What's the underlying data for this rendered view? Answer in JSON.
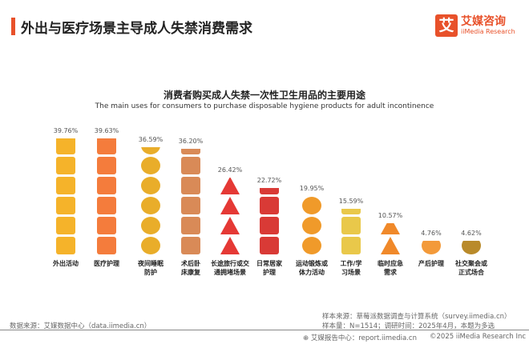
{
  "header": {
    "title": "外出与医疗场景主导成人失禁消费需求",
    "logo_mark": "艾",
    "logo_cn": "艾媒咨询",
    "logo_en": "iiMedia Research"
  },
  "chart_data": {
    "type": "bar",
    "title": "消费者购买成人失禁一次性卫生用品的主要用途",
    "subtitle": "The main uses for consumers to purchase disposable hygiene products for adult incontinence",
    "categories": [
      "外出活动",
      "医疗护理",
      "夜间睡眠防护",
      "术后卧床康复",
      "长途旅行或交通拥堵场景",
      "日常居家护理",
      "运动锻炼或体力活动",
      "工作/学习场景",
      "临时应急需求",
      "产后护理",
      "社交聚会或正式场合"
    ],
    "label_lines": [
      [
        "外出活动"
      ],
      [
        "医疗护理"
      ],
      [
        "夜间睡眠",
        "防护"
      ],
      [
        "术后卧",
        "床康复"
      ],
      [
        "长途旅行或交",
        "通拥堵场景"
      ],
      [
        "日常居家",
        "护理"
      ],
      [
        "运动锻炼或",
        "体力活动"
      ],
      [
        "工作/学",
        "习场景"
      ],
      [
        "临时应急",
        "需求"
      ],
      [
        "产后护理"
      ],
      [
        "社交聚会或",
        "正式场合"
      ]
    ],
    "values": [
      39.76,
      39.63,
      36.59,
      36.2,
      26.42,
      22.72,
      19.95,
      15.59,
      10.57,
      4.76,
      4.62
    ],
    "value_labels": [
      "39.76%",
      "39.63%",
      "36.59%",
      "36.20%",
      "26.42%",
      "22.72%",
      "19.95%",
      "15.59%",
      "10.57%",
      "4.76%",
      "4.62%"
    ],
    "unit": "%",
    "icons": [
      "luggage-icon",
      "medical-kit-icon",
      "moon-icon",
      "crutch-cast-icon",
      "traffic-warning-icon",
      "person-sofa-icon",
      "basketball-icon",
      "ruler-pencil-icon",
      "warning-icon",
      "baby-icon",
      "globe-icon"
    ],
    "icon_colors": [
      "#f5b32a",
      "#f47c3c",
      "#e9ad2a",
      "#d98a57",
      "#e53935",
      "#d93a36",
      "#f09a2a",
      "#e9c84a",
      "#f0892a",
      "#f39a3a",
      "#b98a2a"
    ]
  },
  "footer": {
    "source": "数据来源：艾媒数据中心（data.iimedia.cn）",
    "sample_source": "样本来源：草莓派数据调查与计算系统（survey.iimedia.cn）",
    "sample_size": "样本量：N=1514；调研时间：2025年4月，本题为多选",
    "report_center": "艾媒报告中心：report.iimedia.cn",
    "copyright": "©2025  iiMedia Research  Inc"
  }
}
